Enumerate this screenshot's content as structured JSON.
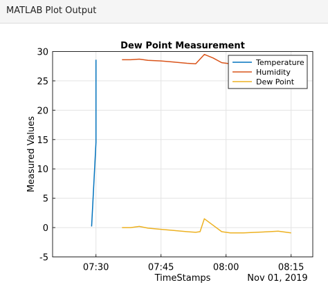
{
  "window": {
    "title": "MATLAB Plot Output"
  },
  "chart_data": {
    "type": "line",
    "title": "Dew Point Measurement",
    "xlabel": "TimeStamps",
    "ylabel": "Measured Values",
    "date_label": "Nov 01, 2019",
    "ylim": [
      -5,
      30
    ],
    "yticks": [
      -5,
      0,
      5,
      10,
      15,
      20,
      25,
      30
    ],
    "xlim": [
      "07:20",
      "08:20"
    ],
    "xticks": [
      "07:30",
      "07:45",
      "08:00",
      "08:15"
    ],
    "grid": true,
    "legend_position": "top-right",
    "series": [
      {
        "name": "Temperature",
        "color": "#0072BD",
        "points": [
          [
            "07:29",
            0.2
          ],
          [
            "07:30",
            14.5
          ],
          [
            "07:30",
            23.0
          ],
          [
            "07:30",
            28.6
          ]
        ]
      },
      {
        "name": "Humidity",
        "color": "#D95319",
        "points": [
          [
            "07:36",
            28.6
          ],
          [
            "07:38",
            28.6
          ],
          [
            "07:40",
            28.7
          ],
          [
            "07:42",
            28.5
          ],
          [
            "07:45",
            28.4
          ],
          [
            "07:48",
            28.2
          ],
          [
            "07:51",
            28.0
          ],
          [
            "07:53",
            27.9
          ],
          [
            "07:55",
            29.5
          ],
          [
            "07:57",
            28.9
          ],
          [
            "07:59",
            28.1
          ],
          [
            "08:01",
            27.9
          ],
          [
            "08:04",
            27.9
          ],
          [
            "08:07",
            27.9
          ],
          [
            "08:10",
            27.8
          ],
          [
            "08:13",
            27.9
          ],
          [
            "08:15",
            27.8
          ]
        ]
      },
      {
        "name": "Dew Point",
        "color": "#EDB120",
        "points": [
          [
            "07:36",
            0.0
          ],
          [
            "07:38",
            0.0
          ],
          [
            "07:40",
            0.2
          ],
          [
            "07:42",
            -0.1
          ],
          [
            "07:45",
            -0.3
          ],
          [
            "07:48",
            -0.5
          ],
          [
            "07:51",
            -0.7
          ],
          [
            "07:53",
            -0.8
          ],
          [
            "07:54",
            -0.7
          ],
          [
            "07:55",
            1.5
          ],
          [
            "07:57",
            0.4
          ],
          [
            "07:59",
            -0.7
          ],
          [
            "08:01",
            -0.9
          ],
          [
            "08:04",
            -0.9
          ],
          [
            "08:07",
            -0.8
          ],
          [
            "08:10",
            -0.7
          ],
          [
            "08:12",
            -0.6
          ],
          [
            "08:15",
            -0.9
          ]
        ]
      }
    ]
  }
}
